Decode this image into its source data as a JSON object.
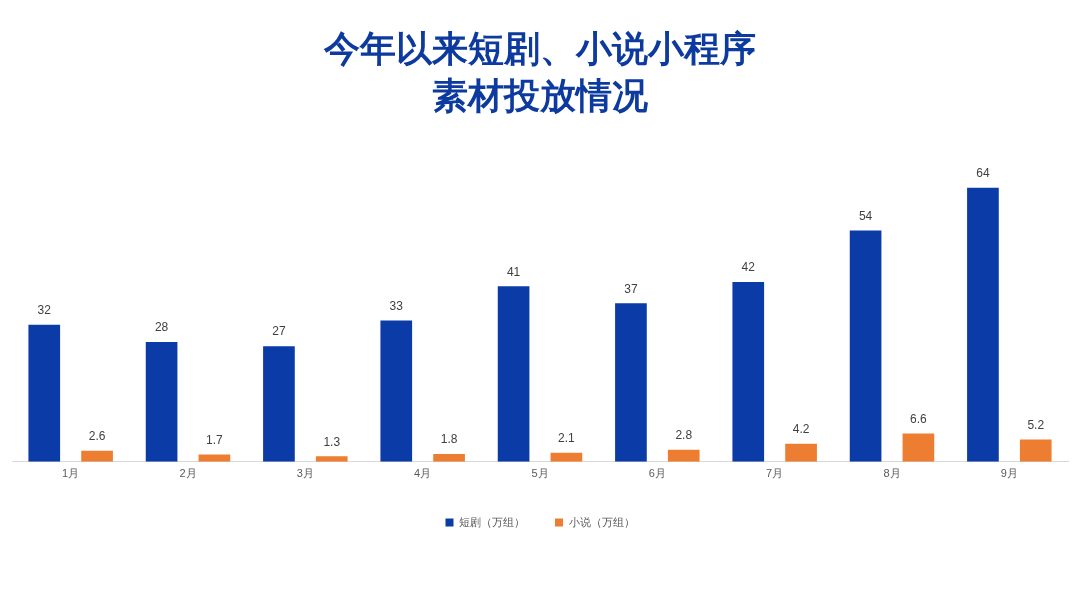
{
  "chart_data": {
    "type": "bar",
    "title": "今年以来短剧、小说小程序素材投放情况",
    "categories": [
      "1月",
      "2月",
      "3月",
      "4月",
      "5月",
      "6月",
      "7月",
      "8月",
      "9月"
    ],
    "series": [
      {
        "name": "短剧（万组）",
        "color": "#0b3ba7",
        "values": [
          32,
          28,
          27,
          33,
          41,
          37,
          42,
          54,
          64
        ]
      },
      {
        "name": "小说（万组）",
        "color": "#ed7d31",
        "values": [
          2.6,
          1.7,
          1.3,
          1.8,
          2.1,
          2.8,
          4.2,
          6.6,
          5.2
        ]
      }
    ],
    "data_labels": true,
    "legend": "bottom",
    "grid": false
  }
}
